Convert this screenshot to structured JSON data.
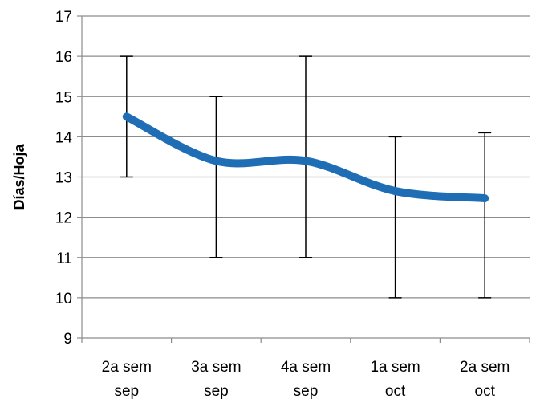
{
  "chart_data": {
    "type": "line",
    "title": "",
    "xlabel": "",
    "ylabel": "Días/Hoja",
    "categories": [
      [
        "2a sem",
        "sep"
      ],
      [
        "3a sem",
        "sep"
      ],
      [
        "4a sem",
        "sep"
      ],
      [
        "1a sem",
        "oct"
      ],
      [
        "2a sem",
        "oct"
      ]
    ],
    "ylim": [
      9,
      17
    ],
    "yticks": [
      9,
      10,
      11,
      12,
      13,
      14,
      15,
      16,
      17
    ],
    "grid": true,
    "legend": "none",
    "series": [
      {
        "values": [
          14.5,
          13.4,
          13.4,
          12.65,
          12.47
        ],
        "error_low": [
          13,
          11,
          11,
          10,
          10
        ],
        "error_high": [
          16,
          15,
          16,
          14,
          14.1
        ],
        "color": "#1f6eb5",
        "smooth": true
      }
    ]
  }
}
